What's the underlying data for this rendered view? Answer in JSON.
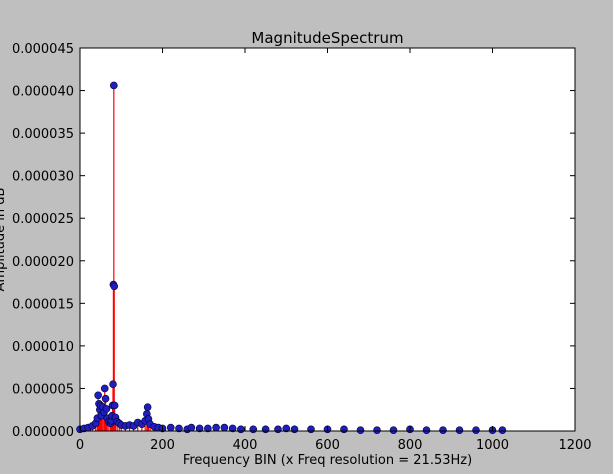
{
  "chart_data": {
    "type": "scatter",
    "title": "MagnitudeSpectrum",
    "xlabel": "Frequency BIN (x Freq resolution = 21.53Hz)",
    "ylabel": "Amplitude in dB",
    "xlim": [
      0,
      1200
    ],
    "ylim": [
      0,
      4.5e-05
    ],
    "x_ticks": [
      0,
      200,
      400,
      600,
      800,
      1000,
      1200
    ],
    "x_tick_labels": [
      "0",
      "200",
      "400",
      "600",
      "800",
      "1000",
      "1200"
    ],
    "y_ticks": [
      0,
      5e-06,
      1e-05,
      1.5e-05,
      2e-05,
      2.5e-05,
      3e-05,
      3.5e-05,
      4e-05,
      4.5e-05
    ],
    "y_tick_labels": [
      "0.000000",
      "0.000005",
      "0.000010",
      "0.000015",
      "0.000020",
      "0.000025",
      "0.000030",
      "0.000035",
      "0.000040",
      "0.000045"
    ],
    "grid": false,
    "marker_color": "#1f1fbf",
    "stem_color": "#ff0000",
    "series": [
      {
        "style": "stem",
        "points": [
          [
            0,
            2e-07
          ],
          [
            10,
            3e-07
          ],
          [
            20,
            4e-07
          ],
          [
            30,
            6e-07
          ],
          [
            38,
            9e-07
          ],
          [
            42,
            1.5e-06
          ],
          [
            44,
            4.2e-06
          ],
          [
            46,
            3.2e-06
          ],
          [
            48,
            2.5e-06
          ],
          [
            50,
            3e-06
          ],
          [
            52,
            1.8e-06
          ],
          [
            55,
            2.8e-06
          ],
          [
            58,
            2.2e-06
          ],
          [
            60,
            5e-06
          ],
          [
            62,
            3.8e-06
          ],
          [
            64,
            2.6e-06
          ],
          [
            66,
            1.5e-06
          ],
          [
            70,
            1.1e-06
          ],
          [
            74,
            9e-07
          ],
          [
            76,
            1.2e-06
          ],
          [
            78,
            1.8e-06
          ],
          [
            79,
            3e-06
          ],
          [
            80,
            5.5e-06
          ],
          [
            81,
            1.72e-05
          ],
          [
            82,
            4.06e-05
          ],
          [
            83,
            1.7e-05
          ],
          [
            84,
            3e-06
          ],
          [
            86,
            1.6e-06
          ],
          [
            90,
            1.1e-06
          ],
          [
            95,
            9e-07
          ],
          [
            100,
            7e-07
          ],
          [
            110,
            6e-07
          ],
          [
            120,
            7e-07
          ],
          [
            130,
            6e-07
          ],
          [
            140,
            1e-06
          ],
          [
            150,
            8e-07
          ],
          [
            158,
            1.2e-06
          ],
          [
            162,
            2e-06
          ],
          [
            164,
            2.8e-06
          ],
          [
            166,
            1.4e-06
          ],
          [
            170,
            8e-07
          ],
          [
            180,
            5e-07
          ],
          [
            190,
            4e-07
          ],
          [
            200,
            3e-07
          ],
          [
            220,
            4e-07
          ],
          [
            240,
            3e-07
          ],
          [
            260,
            2e-07
          ],
          [
            270,
            4e-07
          ],
          [
            290,
            3e-07
          ],
          [
            310,
            3e-07
          ],
          [
            330,
            4e-07
          ],
          [
            350,
            4e-07
          ],
          [
            370,
            3e-07
          ],
          [
            390,
            2e-07
          ],
          [
            420,
            2e-07
          ],
          [
            450,
            2e-07
          ],
          [
            480,
            2e-07
          ],
          [
            500,
            3e-07
          ],
          [
            520,
            2e-07
          ],
          [
            560,
            2e-07
          ],
          [
            600,
            2e-07
          ],
          [
            640,
            2e-07
          ],
          [
            680,
            1e-07
          ],
          [
            720,
            1e-07
          ],
          [
            760,
            1e-07
          ],
          [
            800,
            2e-07
          ],
          [
            840,
            1e-07
          ],
          [
            880,
            1e-07
          ],
          [
            920,
            1e-07
          ],
          [
            960,
            1e-07
          ],
          [
            1000,
            1e-07
          ],
          [
            1024,
            1e-07
          ]
        ]
      }
    ]
  }
}
